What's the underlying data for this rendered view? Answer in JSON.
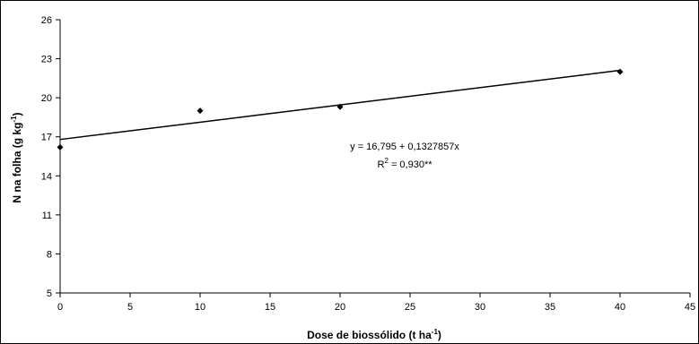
{
  "chart_data": {
    "type": "scatter",
    "title": "",
    "xlabel": {
      "main": "Dose de biossólido (t ha",
      "sup": "-1",
      "end": ")"
    },
    "ylabel": {
      "main": "N na folha (g kg",
      "sup": "-1",
      "end": ")"
    },
    "xlim": [
      0,
      45
    ],
    "ylim": [
      5,
      26
    ],
    "x_ticks": [
      0,
      5,
      10,
      15,
      20,
      25,
      30,
      35,
      40,
      45
    ],
    "y_ticks": [
      5,
      8,
      11,
      14,
      17,
      20,
      23,
      26
    ],
    "series": [
      {
        "x": [
          0,
          10,
          20,
          40
        ],
        "y": [
          16.2,
          19.0,
          19.3,
          22.0
        ]
      }
    ],
    "trendline": {
      "intercept": 16.795,
      "slope": 0.1327857,
      "x_range": [
        0,
        40
      ]
    },
    "annotation": {
      "equation": "y =  16,795 + 0,1327857x",
      "r2_prefix": "R",
      "r2_sup": "2",
      "r2_value": " = 0,930**"
    }
  }
}
